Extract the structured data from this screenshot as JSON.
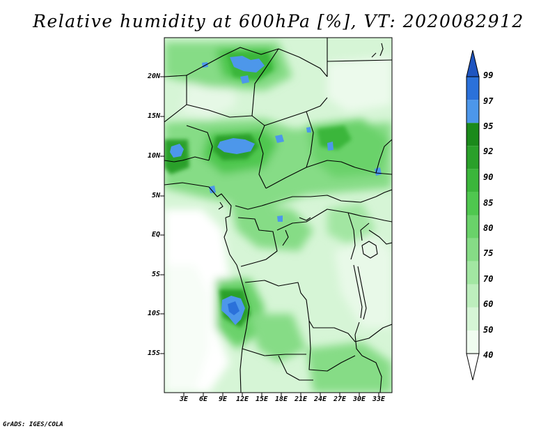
{
  "title": "Relative humidity at 600hPa [%], VT: 2020082912",
  "credit": "GrADS: IGES/COLA",
  "map": {
    "projection": "latlon",
    "lon_range": [
      0,
      35
    ],
    "lat_range": [
      -20,
      25
    ],
    "lat_labels": [
      {
        "text": "20N",
        "lat": 20
      },
      {
        "text": "15N",
        "lat": 15
      },
      {
        "text": "10N",
        "lat": 10
      },
      {
        "text": "5N",
        "lat": 5
      },
      {
        "text": "EQ",
        "lat": 0
      },
      {
        "text": "5S",
        "lat": -5
      },
      {
        "text": "10S",
        "lat": -10
      },
      {
        "text": "15S",
        "lat": -15
      }
    ],
    "lon_labels": [
      {
        "text": "3E",
        "lon": 3
      },
      {
        "text": "6E",
        "lon": 6
      },
      {
        "text": "9E",
        "lon": 9
      },
      {
        "text": "12E",
        "lon": 12
      },
      {
        "text": "15E",
        "lon": 15
      },
      {
        "text": "18E",
        "lon": 18
      },
      {
        "text": "21E",
        "lon": 21
      },
      {
        "text": "24E",
        "lon": 24
      },
      {
        "text": "27E",
        "lon": 27
      },
      {
        "text": "30E",
        "lon": 30
      },
      {
        "text": "33E",
        "lon": 33
      }
    ]
  },
  "colorbar": {
    "levels": [
      "40",
      "50",
      "60",
      "70",
      "75",
      "80",
      "85",
      "90",
      "92",
      "95",
      "97",
      "99"
    ],
    "colors": [
      "#f0fcf0",
      "#d6f5d6",
      "#bdeebd",
      "#a2e6a2",
      "#86dc86",
      "#6ad26a",
      "#4fc74f",
      "#3bb63b",
      "#2aa02a",
      "#1b8a1b",
      "#4d97ea",
      "#2b71da",
      "#1f55c0"
    ],
    "bottom_triangle_color": "#ffffff"
  }
}
